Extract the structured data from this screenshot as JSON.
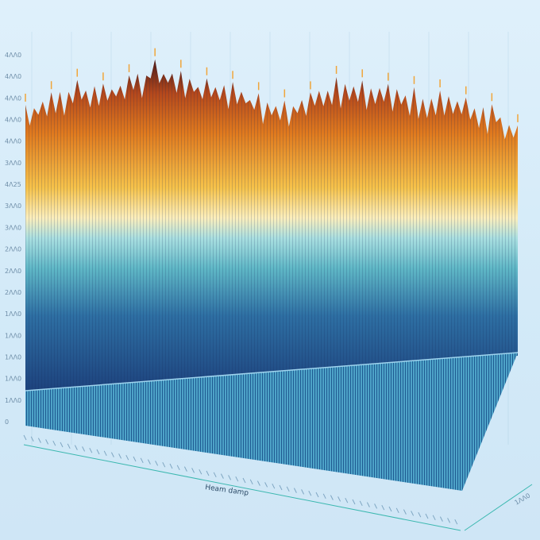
{
  "chart_data": {
    "type": "area",
    "title": "",
    "xlabel": "Heam damp",
    "ylabel": "",
    "y_tick_labels": [
      "4ΛΛ0",
      "4ΛΛ0",
      "4ΛΛ0",
      "4ΛΛ0",
      "4ΛΛ0",
      "3ΛΛ0",
      "4Λ25",
      "3ΛΛ0",
      "3ΛΛ0",
      "2ΛΛ0",
      "2ΛΛ0",
      "2ΛΛ0",
      "1ΛΛ0",
      "1ΛΛ0",
      "1ΛΛ0",
      "1ΛΛ0",
      "1ΛΛ0",
      "0"
    ],
    "x_tick_labels": [],
    "right_tick_label": "1ΛΛ0",
    "ylim": [
      0,
      4500
    ],
    "grid": true,
    "series": [
      {
        "values": [
          3600,
          3750,
          3900,
          3850,
          3950,
          4150,
          4000,
          3900,
          3850,
          3700,
          3600,
          3700,
          3900,
          3850,
          3800,
          3750,
          3700,
          3600,
          3500,
          3200
        ]
      }
    ],
    "colors": {
      "peak_dark": "#4a1a18",
      "peak_orange": "#e07a1e",
      "flame_yellow": "#f6c24a",
      "pale_band": "#fbeebc",
      "teal": "#5fb7c6",
      "mid_blue": "#2e6fa3",
      "deep_blue": "#1c3f7a",
      "base_stripe": "#4ea3c8",
      "axis_teal": "#3cb8b0"
    }
  }
}
